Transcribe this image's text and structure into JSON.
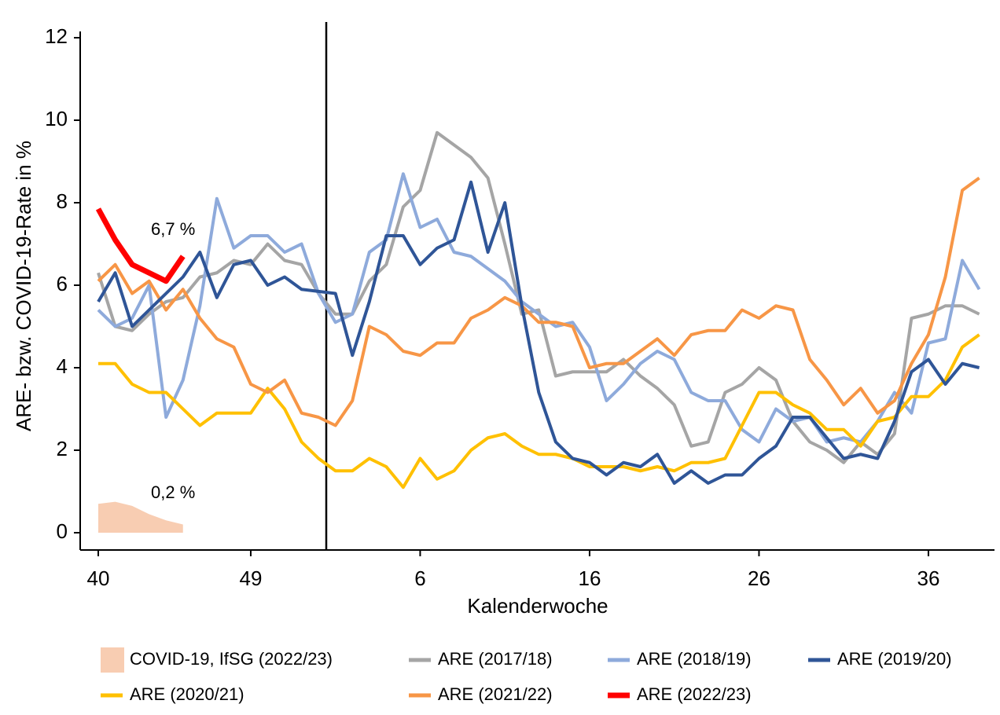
{
  "chart_data": {
    "type": "line",
    "ylabel": "ARE- bzw. COVID-19-Rate in %",
    "xlabel": "Kalenderwoche",
    "ylim": [
      0,
      12
    ],
    "yticks": [
      0,
      2,
      4,
      6,
      8,
      10,
      12
    ],
    "categories": [
      "40",
      null,
      null,
      null,
      null,
      null,
      null,
      null,
      null,
      "49",
      null,
      null,
      null,
      null,
      null,
      null,
      null,
      null,
      null,
      "6",
      null,
      null,
      null,
      null,
      null,
      null,
      null,
      null,
      null,
      "16",
      null,
      null,
      null,
      null,
      null,
      null,
      null,
      null,
      null,
      "26",
      null,
      null,
      null,
      null,
      null,
      null,
      null,
      null,
      null,
      "36",
      null,
      null,
      null
    ],
    "series": [
      {
        "name": "COVID-19, IfSG (2022/23)",
        "style": "area",
        "color": "#f8cdb2",
        "values": [
          0.7,
          0.75,
          0.65,
          0.45,
          0.3,
          0.2,
          null,
          null,
          null,
          null,
          null,
          null,
          null,
          null,
          null,
          null,
          null,
          null,
          null,
          null,
          null,
          null,
          null,
          null,
          null,
          null,
          null,
          null,
          null,
          null,
          null,
          null,
          null,
          null,
          null,
          null,
          null,
          null,
          null,
          null,
          null,
          null,
          null,
          null,
          null,
          null,
          null,
          null,
          null,
          null,
          null,
          null,
          null
        ]
      },
      {
        "name": "ARE (2017/18)",
        "style": "line",
        "color": "#a5a5a5",
        "values": [
          6.3,
          5.0,
          4.9,
          5.3,
          5.6,
          5.7,
          6.2,
          6.3,
          6.6,
          6.5,
          7.0,
          6.6,
          6.5,
          5.8,
          5.3,
          5.3,
          6.1,
          6.5,
          7.9,
          8.3,
          9.7,
          9.4,
          9.1,
          8.6,
          7.0,
          5.3,
          5.4,
          3.8,
          3.9,
          3.9,
          3.9,
          4.2,
          3.8,
          3.5,
          3.1,
          2.1,
          2.2,
          3.4,
          3.6,
          4.0,
          3.7,
          2.7,
          2.2,
          2.0,
          1.7,
          2.2,
          1.9,
          2.4,
          5.2,
          5.3,
          5.5,
          5.5,
          5.3
        ]
      },
      {
        "name": "ARE (2018/19)",
        "style": "line",
        "color": "#8eaadb",
        "values": [
          5.4,
          5.0,
          5.2,
          6.0,
          2.8,
          3.7,
          5.5,
          8.1,
          6.9,
          7.2,
          7.2,
          6.8,
          7.0,
          5.8,
          5.1,
          5.3,
          6.8,
          7.1,
          8.7,
          7.4,
          7.6,
          6.8,
          6.7,
          6.4,
          6.1,
          5.6,
          5.3,
          5.0,
          5.1,
          4.5,
          3.2,
          3.6,
          4.1,
          4.4,
          4.2,
          3.4,
          3.2,
          3.2,
          2.5,
          2.2,
          3.0,
          2.7,
          2.8,
          2.2,
          2.3,
          2.2,
          2.7,
          3.4,
          2.9,
          4.6,
          4.7,
          6.6,
          5.9
        ]
      },
      {
        "name": "ARE (2019/20)",
        "style": "line",
        "color": "#2f5597",
        "values": [
          5.6,
          6.3,
          5.0,
          5.4,
          5.8,
          6.2,
          6.8,
          5.7,
          6.5,
          6.6,
          6.0,
          6.2,
          5.9,
          5.85,
          5.8,
          4.3,
          5.6,
          7.2,
          7.2,
          6.5,
          6.9,
          7.1,
          8.5,
          6.8,
          8.0,
          5.5,
          3.4,
          2.2,
          1.8,
          1.7,
          1.4,
          1.7,
          1.6,
          1.9,
          1.2,
          1.5,
          1.2,
          1.4,
          1.4,
          1.8,
          2.1,
          2.8,
          2.8,
          2.3,
          1.8,
          1.9,
          1.8,
          2.7,
          3.9,
          4.2,
          3.6,
          4.1,
          4.0
        ]
      },
      {
        "name": "ARE (2020/21)",
        "style": "line",
        "color": "#ffc000",
        "values": [
          4.1,
          4.1,
          3.6,
          3.4,
          3.4,
          3.0,
          2.6,
          2.9,
          2.9,
          2.9,
          3.5,
          3.0,
          2.2,
          1.8,
          1.5,
          1.5,
          1.8,
          1.6,
          1.1,
          1.8,
          1.3,
          1.5,
          2.0,
          2.3,
          2.4,
          2.1,
          1.9,
          1.9,
          1.8,
          1.6,
          1.6,
          1.6,
          1.5,
          1.6,
          1.5,
          1.7,
          1.7,
          1.8,
          2.6,
          3.4,
          3.4,
          3.1,
          2.9,
          2.5,
          2.5,
          2.1,
          2.7,
          2.8,
          3.3,
          3.3,
          3.7,
          4.5,
          4.8
        ]
      },
      {
        "name": "ARE (2021/22)",
        "style": "line",
        "color": "#f79646",
        "values": [
          6.1,
          6.5,
          5.8,
          6.1,
          5.4,
          5.9,
          5.2,
          4.7,
          4.5,
          3.6,
          3.4,
          3.7,
          2.9,
          2.8,
          2.6,
          3.2,
          5.0,
          4.8,
          4.4,
          4.3,
          4.6,
          4.6,
          5.2,
          5.4,
          5.7,
          5.5,
          5.1,
          5.1,
          5.0,
          4.0,
          4.1,
          4.1,
          4.4,
          4.7,
          4.3,
          4.8,
          4.9,
          4.9,
          5.4,
          5.2,
          5.5,
          5.4,
          4.2,
          3.7,
          3.1,
          3.5,
          2.9,
          3.2,
          4.1,
          4.8,
          6.2,
          8.3,
          8.6
        ]
      },
      {
        "name": "ARE (2022/23)",
        "style": "line",
        "color": "#ff0000",
        "width": 7,
        "values": [
          7.85,
          7.1,
          6.5,
          6.3,
          6.1,
          6.7,
          null,
          null,
          null,
          null,
          null,
          null,
          null,
          null,
          null,
          null,
          null,
          null,
          null,
          null,
          null,
          null,
          null,
          null,
          null,
          null,
          null,
          null,
          null,
          null,
          null,
          null,
          null,
          null,
          null,
          null,
          null,
          null,
          null,
          null,
          null,
          null,
          null,
          null,
          null,
          null,
          null,
          null,
          null,
          null,
          null,
          null,
          null
        ]
      }
    ],
    "annotations": [
      "6,7 %",
      "0,2 %"
    ]
  }
}
